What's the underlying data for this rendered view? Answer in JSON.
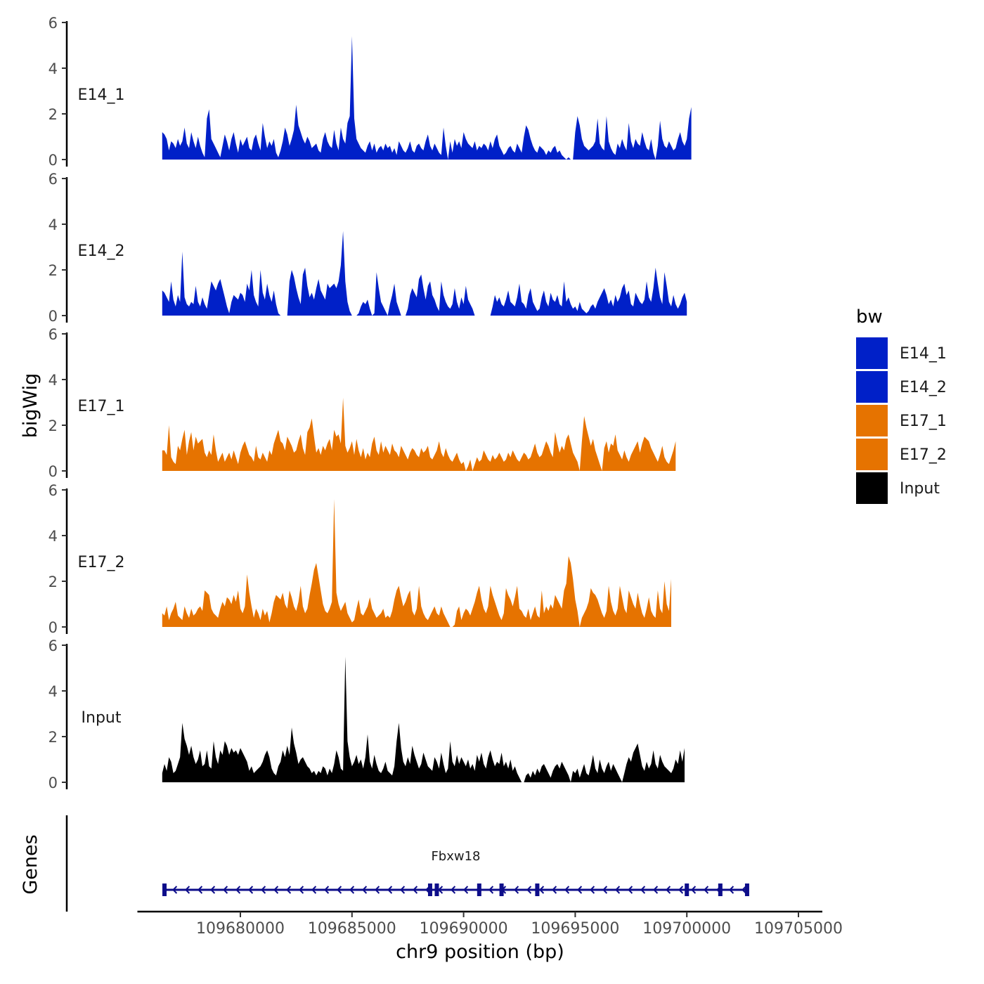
{
  "chart_data": {
    "type": "area",
    "y_axis_label": "bigWig",
    "x_axis_label": "chr9 position (bp)",
    "x_range": [
      109676500,
      109704700
    ],
    "x_ticks": [
      109680000,
      109685000,
      109690000,
      109695000,
      109700000,
      109705000
    ],
    "x_tick_labels": [
      "109680000",
      "109685000",
      "109690000",
      "109695000",
      "109700000",
      "109705000"
    ],
    "y_range": [
      0,
      6
    ],
    "y_ticks": [
      0,
      2,
      4,
      6
    ],
    "y_tick_labels": [
      "0",
      "2",
      "4",
      "6"
    ],
    "legend": {
      "title": "bw",
      "entries": [
        {
          "label": "E14_1",
          "color": "#0020c8"
        },
        {
          "label": "E14_2",
          "color": "#0020c8"
        },
        {
          "label": "E17_1",
          "color": "#e67300"
        },
        {
          "label": "E17_2",
          "color": "#e67300"
        },
        {
          "label": "Input",
          "color": "#000000"
        }
      ]
    },
    "x_start": 109676500,
    "x_step": 100,
    "series": [
      {
        "name": "E14_1",
        "color": "#0020c8",
        "values": [
          1.2,
          1.1,
          0.9,
          0.4,
          0.8,
          0.7,
          0.5,
          0.9,
          0.6,
          0.8,
          1.4,
          0.7,
          0.5,
          1.2,
          0.8,
          0.5,
          1.0,
          0.6,
          0.3,
          0.1,
          1.8,
          2.2,
          0.9,
          0.7,
          0.5,
          0.3,
          0.1,
          0.6,
          1.1,
          0.8,
          0.4,
          0.9,
          1.2,
          0.7,
          0.3,
          0.9,
          0.6,
          0.8,
          1.0,
          0.5,
          0.4,
          0.9,
          1.1,
          0.7,
          0.4,
          1.6,
          1.0,
          0.5,
          0.8,
          0.6,
          0.9,
          0.3,
          0.1,
          0.4,
          0.8,
          1.4,
          1.1,
          0.6,
          0.9,
          1.3,
          2.4,
          1.5,
          1.2,
          0.9,
          0.7,
          1.0,
          0.8,
          0.5,
          0.6,
          0.7,
          0.4,
          0.3,
          0.9,
          1.2,
          0.8,
          0.6,
          0.5,
          1.3,
          0.7,
          0.4,
          1.4,
          0.9,
          0.7,
          1.6,
          1.9,
          5.4,
          1.8,
          0.9,
          0.7,
          0.5,
          0.4,
          0.3,
          0.6,
          0.8,
          0.4,
          0.7,
          0.3,
          0.5,
          0.6,
          0.4,
          0.7,
          0.5,
          0.6,
          0.3,
          0.5,
          0.2,
          0.8,
          0.6,
          0.4,
          0.3,
          0.5,
          0.8,
          0.4,
          0.3,
          0.6,
          0.7,
          0.5,
          0.4,
          0.8,
          1.1,
          0.6,
          0.4,
          0.7,
          0.5,
          0.3,
          0.2,
          1.4,
          0.6,
          0.0,
          0.8,
          0.3,
          0.9,
          0.6,
          0.8,
          0.5,
          1.2,
          0.9,
          0.7,
          0.6,
          0.5,
          0.8,
          0.4,
          0.6,
          0.5,
          0.7,
          0.6,
          0.4,
          0.8,
          0.5,
          0.9,
          1.1,
          0.6,
          0.4,
          0.2,
          0.3,
          0.5,
          0.6,
          0.4,
          0.3,
          0.7,
          0.5,
          0.3,
          1.0,
          1.5,
          1.3,
          0.9,
          0.6,
          0.4,
          0.3,
          0.6,
          0.5,
          0.4,
          0.2,
          0.4,
          0.3,
          0.5,
          0.6,
          0.3,
          0.4,
          0.2,
          0.1,
          0.0,
          0.1,
          0.0,
          0.0,
          1.2,
          1.9,
          1.5,
          0.9,
          0.6,
          0.5,
          0.4,
          0.5,
          0.6,
          0.8,
          1.8,
          0.7,
          0.5,
          0.4,
          1.9,
          0.8,
          0.5,
          0.3,
          0.2,
          0.7,
          0.5,
          0.9,
          0.6,
          0.4,
          1.6,
          0.8,
          0.5,
          0.9,
          0.7,
          0.6,
          1.2,
          0.8,
          0.5,
          0.4,
          0.9,
          0.3,
          0.0,
          0.6,
          1.7,
          0.9,
          0.6,
          0.5,
          0.8,
          0.6,
          0.4,
          0.5,
          0.9,
          1.2,
          0.8,
          0.6,
          0.9,
          1.8,
          2.3
        ]
      },
      {
        "name": "E14_2",
        "color": "#0020c8",
        "values": [
          1.1,
          1.0,
          0.8,
          0.6,
          1.5,
          0.7,
          0.4,
          0.9,
          0.6,
          2.8,
          0.8,
          0.5,
          0.4,
          0.6,
          0.5,
          1.3,
          0.6,
          0.4,
          0.8,
          0.5,
          0.3,
          0.9,
          1.5,
          1.3,
          1.1,
          1.4,
          1.6,
          1.2,
          0.8,
          0.4,
          0.1,
          0.6,
          0.9,
          0.8,
          0.7,
          1.0,
          0.9,
          0.6,
          1.4,
          1.1,
          2.0,
          0.9,
          0.6,
          0.4,
          2.0,
          1.0,
          0.7,
          1.4,
          0.9,
          0.6,
          1.1,
          0.5,
          0.1,
          0.0,
          0.0,
          0.0,
          0.0,
          1.5,
          2.0,
          1.7,
          1.2,
          0.8,
          0.5,
          1.8,
          2.1,
          1.3,
          0.8,
          1.0,
          0.7,
          1.2,
          1.6,
          1.1,
          0.9,
          0.7,
          1.4,
          1.2,
          1.3,
          1.4,
          1.2,
          1.5,
          2.2,
          3.7,
          1.5,
          0.6,
          0.2,
          0.0,
          0.0,
          0.0,
          0.1,
          0.4,
          0.6,
          0.5,
          0.7,
          0.3,
          0.0,
          0.1,
          1.9,
          1.2,
          0.6,
          0.4,
          0.2,
          0.0,
          0.5,
          0.9,
          1.4,
          0.6,
          0.3,
          0.0,
          0.0,
          0.0,
          0.3,
          0.9,
          1.2,
          1.0,
          0.8,
          1.6,
          1.8,
          1.2,
          0.7,
          1.3,
          1.5,
          0.9,
          0.7,
          0.4,
          0.2,
          1.5,
          0.9,
          0.6,
          0.4,
          0.3,
          0.5,
          1.2,
          0.6,
          0.3,
          0.8,
          0.5,
          1.3,
          0.7,
          0.5,
          0.3,
          0.0,
          0.0,
          0.0,
          0.0,
          0.0,
          0.0,
          0.0,
          0.0,
          0.4,
          0.9,
          0.6,
          0.8,
          0.5,
          0.4,
          0.7,
          1.1,
          0.6,
          0.5,
          0.4,
          0.8,
          1.4,
          0.6,
          0.5,
          0.3,
          0.9,
          1.2,
          0.6,
          0.4,
          0.2,
          0.3,
          0.8,
          1.1,
          0.6,
          0.4,
          1.0,
          0.7,
          0.6,
          0.9,
          0.5,
          0.4,
          1.5,
          0.6,
          0.8,
          0.5,
          0.3,
          0.4,
          0.2,
          0.6,
          0.3,
          0.2,
          0.1,
          0.2,
          0.4,
          0.5,
          0.3,
          0.6,
          0.8,
          1.0,
          1.2,
          0.9,
          0.5,
          0.7,
          0.4,
          0.9,
          0.6,
          0.8,
          1.2,
          1.4,
          0.9,
          1.1,
          0.5,
          0.4,
          1.0,
          0.8,
          0.6,
          0.5,
          0.7,
          1.5,
          0.8,
          0.6,
          1.2,
          2.1,
          1.4,
          0.8,
          0.5,
          1.9,
          1.3,
          0.6,
          0.4,
          0.9,
          0.5,
          0.3,
          0.5,
          0.8,
          1.0,
          0.6
        ]
      },
      {
        "name": "E17_1",
        "color": "#e67300",
        "values": [
          0.9,
          0.9,
          0.7,
          2.0,
          0.6,
          0.4,
          0.3,
          1.1,
          0.9,
          1.4,
          1.8,
          0.7,
          1.3,
          1.7,
          0.9,
          1.5,
          1.2,
          1.3,
          1.4,
          0.8,
          0.6,
          0.9,
          0.7,
          1.6,
          0.9,
          0.4,
          0.6,
          0.8,
          0.4,
          0.6,
          0.8,
          0.5,
          0.9,
          0.6,
          0.3,
          0.8,
          1.1,
          1.3,
          1.0,
          0.7,
          0.6,
          0.4,
          1.1,
          0.6,
          0.5,
          0.8,
          0.6,
          0.4,
          0.9,
          0.7,
          1.2,
          1.5,
          1.8,
          1.3,
          1.2,
          0.9,
          1.5,
          1.3,
          1.1,
          0.8,
          0.9,
          1.3,
          1.6,
          1.0,
          0.7,
          1.7,
          1.9,
          2.3,
          1.5,
          0.8,
          1.0,
          0.7,
          1.1,
          0.9,
          1.2,
          1.4,
          0.9,
          1.8,
          1.5,
          1.6,
          1.2,
          3.2,
          1.1,
          0.8,
          1.0,
          1.3,
          0.7,
          1.4,
          0.9,
          0.6,
          1.0,
          0.5,
          0.8,
          0.6,
          1.2,
          1.5,
          0.9,
          0.7,
          1.3,
          0.8,
          1.1,
          0.9,
          0.7,
          1.2,
          0.9,
          0.8,
          0.6,
          1.1,
          0.9,
          0.7,
          0.5,
          0.8,
          1.0,
          0.9,
          0.7,
          0.6,
          1.0,
          0.8,
          0.9,
          1.1,
          0.6,
          0.5,
          0.7,
          0.9,
          1.3,
          0.8,
          0.6,
          1.0,
          0.7,
          0.5,
          0.4,
          0.6,
          0.8,
          0.5,
          0.3,
          0.4,
          0.0,
          0.2,
          0.5,
          0.0,
          0.3,
          0.6,
          0.4,
          0.5,
          0.9,
          0.7,
          0.5,
          0.4,
          0.7,
          0.5,
          0.6,
          0.8,
          0.6,
          0.4,
          0.5,
          0.8,
          0.6,
          0.9,
          0.7,
          0.5,
          0.4,
          0.6,
          0.8,
          0.7,
          0.5,
          0.6,
          0.9,
          1.2,
          0.8,
          0.6,
          0.7,
          1.0,
          1.3,
          1.1,
          0.8,
          0.6,
          1.7,
          1.2,
          0.8,
          1.1,
          0.9,
          1.4,
          1.6,
          1.2,
          0.8,
          0.6,
          0.4,
          0.0,
          1.3,
          2.4,
          1.9,
          1.5,
          1.1,
          1.4,
          0.9,
          0.6,
          0.3,
          0.0,
          1.0,
          1.3,
          0.8,
          1.2,
          1.1,
          1.6,
          0.9,
          0.7,
          0.5,
          0.9,
          0.6,
          0.4,
          0.7,
          0.9,
          1.1,
          1.3,
          0.8,
          1.2,
          1.5,
          1.4,
          1.3,
          1.0,
          0.8,
          0.6,
          0.4,
          0.7,
          1.1,
          0.6,
          0.4,
          0.3,
          0.6,
          0.9,
          1.3
        ]
      },
      {
        "name": "E17_2",
        "color": "#e67300",
        "values": [
          0.6,
          0.5,
          0.9,
          0.3,
          0.6,
          0.8,
          1.1,
          0.5,
          0.4,
          0.3,
          0.9,
          0.6,
          0.4,
          0.8,
          0.5,
          0.6,
          0.8,
          0.9,
          0.7,
          1.6,
          1.5,
          1.4,
          0.8,
          0.6,
          0.5,
          0.4,
          0.8,
          1.1,
          0.9,
          1.3,
          1.2,
          1.0,
          1.4,
          1.1,
          1.6,
          0.8,
          0.6,
          0.9,
          2.3,
          1.5,
          0.9,
          0.4,
          0.8,
          0.6,
          0.3,
          0.8,
          0.5,
          0.7,
          0.2,
          0.6,
          1.1,
          1.4,
          1.3,
          1.2,
          1.5,
          1.0,
          0.8,
          1.6,
          1.3,
          0.9,
          0.7,
          1.1,
          1.8,
          0.9,
          0.6,
          0.8,
          1.4,
          1.9,
          2.5,
          2.8,
          2.2,
          1.6,
          1.0,
          0.7,
          0.6,
          0.8,
          1.1,
          5.6,
          1.5,
          1.0,
          0.7,
          0.9,
          1.1,
          0.6,
          0.4,
          0.2,
          0.3,
          0.8,
          1.2,
          0.6,
          0.5,
          0.7,
          0.9,
          1.3,
          0.8,
          0.6,
          0.4,
          0.5,
          0.6,
          0.8,
          0.4,
          0.5,
          0.4,
          0.7,
          1.2,
          1.6,
          1.8,
          1.3,
          0.9,
          1.1,
          1.4,
          1.6,
          0.7,
          0.5,
          0.8,
          1.8,
          0.9,
          0.6,
          0.4,
          0.3,
          0.5,
          0.7,
          0.9,
          0.6,
          0.5,
          0.9,
          0.6,
          0.4,
          0.2,
          0.0,
          0.0,
          0.1,
          0.7,
          0.9,
          0.3,
          0.6,
          0.8,
          0.7,
          0.5,
          0.8,
          1.1,
          1.5,
          1.8,
          1.2,
          0.8,
          0.6,
          0.9,
          1.8,
          1.4,
          1.1,
          0.8,
          0.5,
          0.3,
          0.6,
          1.7,
          1.4,
          1.2,
          0.9,
          1.3,
          1.8,
          0.8,
          0.7,
          0.5,
          0.4,
          0.8,
          0.3,
          0.6,
          0.9,
          0.5,
          0.4,
          1.6,
          0.6,
          0.9,
          0.7,
          1.0,
          0.8,
          1.4,
          1.2,
          1.0,
          0.8,
          1.6,
          1.9,
          3.1,
          2.8,
          2.1,
          1.2,
          0.7,
          0.0,
          0.4,
          0.6,
          0.8,
          1.1,
          1.7,
          1.5,
          1.4,
          1.2,
          0.9,
          0.6,
          0.4,
          0.7,
          1.8,
          1.1,
          0.7,
          0.5,
          0.8,
          1.8,
          1.3,
          0.8,
          0.6,
          1.6,
          1.3,
          1.0,
          0.8,
          1.5,
          1.0,
          0.6,
          0.4,
          0.8,
          1.3,
          0.7,
          0.5,
          0.4,
          1.6,
          0.8,
          0.6,
          2.0,
          1.0,
          0.7,
          2.1
        ]
      },
      {
        "name": "Input",
        "color": "#000000",
        "values": [
          0.4,
          0.8,
          0.5,
          1.1,
          0.9,
          0.4,
          0.5,
          0.8,
          1.1,
          2.6,
          1.9,
          1.6,
          1.2,
          1.6,
          1.1,
          0.8,
          1.0,
          1.4,
          0.7,
          0.8,
          1.4,
          0.7,
          0.6,
          1.8,
          1.1,
          0.8,
          1.4,
          1.2,
          1.8,
          1.6,
          1.2,
          1.5,
          1.3,
          1.4,
          1.2,
          1.5,
          1.3,
          1.1,
          0.9,
          0.5,
          0.7,
          0.4,
          0.5,
          0.6,
          0.7,
          0.9,
          1.2,
          1.4,
          1.1,
          0.6,
          0.4,
          0.3,
          0.7,
          0.9,
          1.4,
          1.1,
          1.6,
          1.2,
          2.4,
          1.7,
          1.3,
          0.8,
          1.0,
          1.1,
          0.9,
          0.7,
          0.6,
          0.4,
          0.5,
          0.3,
          0.5,
          0.4,
          0.7,
          0.6,
          0.3,
          0.6,
          0.4,
          0.8,
          1.4,
          1.1,
          0.6,
          0.5,
          5.5,
          1.8,
          1.1,
          0.7,
          0.9,
          1.2,
          0.8,
          1.0,
          0.6,
          1.1,
          2.1,
          0.9,
          0.6,
          1.2,
          0.8,
          0.5,
          0.4,
          0.6,
          0.9,
          0.5,
          0.4,
          0.3,
          0.7,
          1.8,
          2.6,
          1.5,
          0.9,
          0.7,
          1.1,
          0.8,
          1.6,
          1.2,
          0.9,
          0.6,
          0.8,
          1.3,
          1.0,
          0.7,
          0.6,
          0.5,
          1.1,
          0.9,
          0.6,
          1.3,
          0.8,
          0.4,
          0.6,
          1.8,
          0.9,
          0.7,
          1.2,
          0.8,
          1.1,
          0.9,
          0.7,
          1.0,
          0.6,
          0.8,
          0.5,
          1.2,
          0.9,
          1.3,
          0.8,
          0.6,
          1.1,
          1.4,
          1.0,
          0.7,
          0.9,
          0.8,
          1.3,
          0.7,
          0.9,
          0.6,
          1.0,
          0.5,
          0.7,
          0.4,
          0.2,
          0.0,
          0.0,
          0.3,
          0.4,
          0.2,
          0.5,
          0.3,
          0.6,
          0.4,
          0.7,
          0.8,
          0.6,
          0.4,
          0.2,
          0.5,
          0.7,
          0.8,
          0.6,
          0.9,
          0.7,
          0.5,
          0.3,
          0.0,
          0.5,
          0.4,
          0.6,
          0.2,
          0.5,
          0.8,
          0.4,
          0.3,
          0.7,
          1.2,
          0.6,
          0.4,
          1.0,
          0.6,
          0.4,
          0.7,
          0.9,
          0.5,
          0.8,
          0.6,
          0.4,
          0.2,
          0.0,
          0.4,
          0.8,
          1.1,
          0.9,
          1.3,
          1.5,
          1.7,
          1.2,
          0.7,
          0.5,
          0.9,
          0.6,
          0.8,
          1.4,
          0.8,
          0.6,
          1.2,
          0.9,
          0.7,
          0.6,
          0.5,
          0.4,
          0.6,
          1.0,
          0.8,
          1.4,
          0.9,
          1.5
        ]
      }
    ],
    "gene_track": {
      "label": "Genes",
      "genes": [
        {
          "name": "Fbxw18",
          "start": 109676550,
          "end": 109702750,
          "strand": "-",
          "exons": [
            109676600,
            109688500,
            109688800,
            109690700,
            109691700,
            109693300,
            109700000,
            109701500,
            109702700
          ]
        }
      ]
    }
  }
}
